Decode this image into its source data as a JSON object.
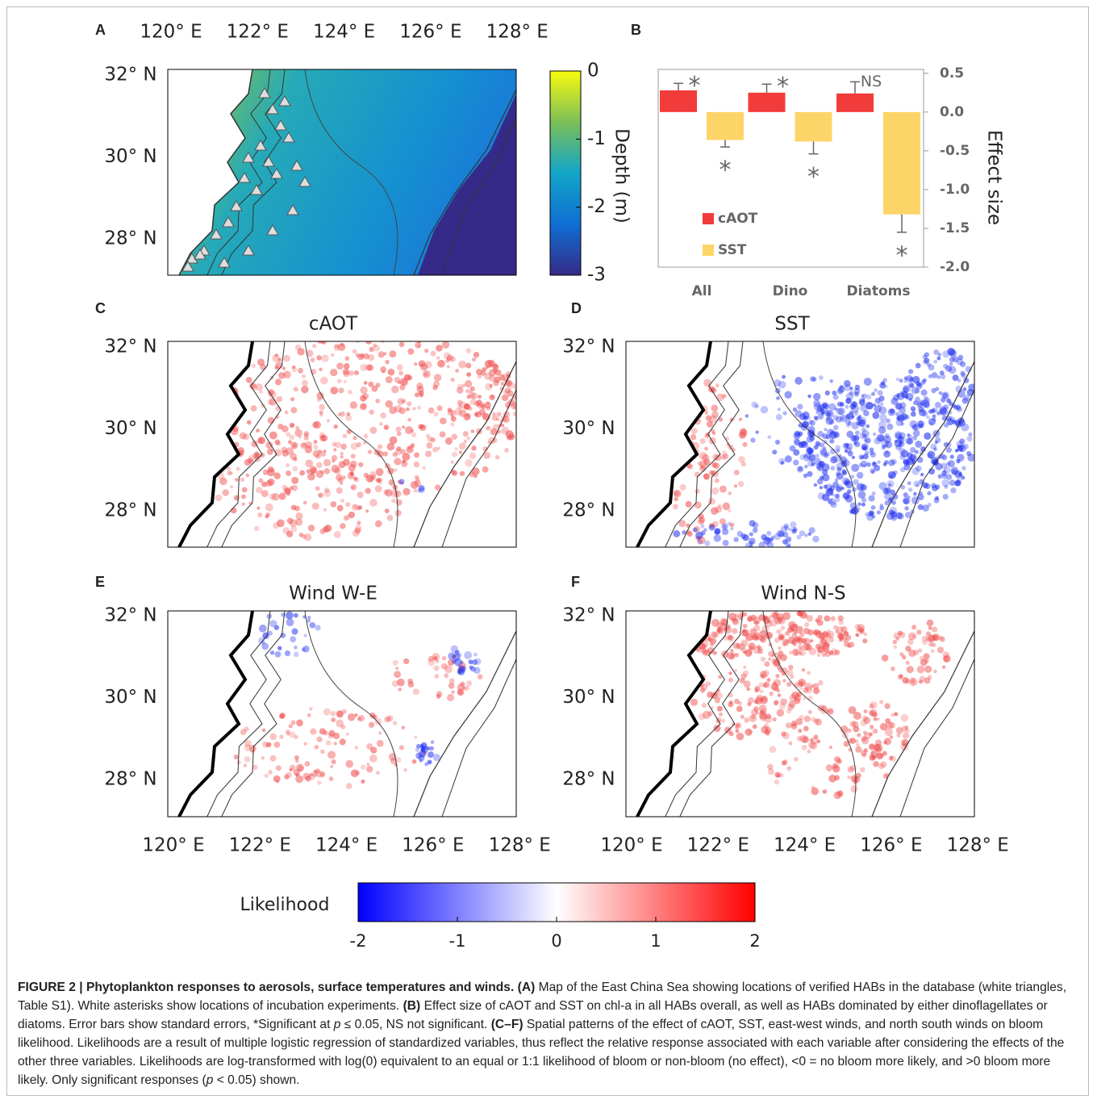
{
  "panel_labels": [
    "A",
    "B",
    "C",
    "D",
    "E",
    "F"
  ],
  "map_axes": {
    "lon_labels": [
      "120° E",
      "122° E",
      "124° E",
      "126° E",
      "128° E"
    ],
    "lat_labels": [
      "32° N",
      "30° N",
      "28° N"
    ]
  },
  "map_titles": [
    "cAOT",
    "SST",
    "Wind W-E",
    "Wind N-S"
  ],
  "depth_colorbar": {
    "label": "Depth (m)",
    "lim": [
      -3,
      0
    ],
    "ticks": [
      0,
      -1,
      -2,
      -3
    ]
  },
  "chart_data": {
    "type": "bar",
    "y_axis_label": "Effect size",
    "categories": [
      "All",
      "Dino",
      "Diatoms"
    ],
    "series": [
      {
        "name": "cAOT",
        "color": "#f23b3b",
        "values": [
          0.28,
          0.25,
          0.24
        ],
        "errors": [
          0.09,
          0.11,
          0.15
        ],
        "sig_labels": [
          "*",
          "*",
          "NS"
        ]
      },
      {
        "name": "SST",
        "color": "#fdd468",
        "values": [
          -0.36,
          -0.38,
          -1.32
        ],
        "errors": [
          0.09,
          0.16,
          0.23
        ],
        "sig_labels": [
          "*",
          "*",
          "*"
        ]
      }
    ],
    "ylim": [
      -2.0,
      0.55
    ],
    "yticks": [
      0.5,
      {
        "value": 0,
        "label": "0.0"
      },
      -0.5,
      {
        "value": -1,
        "label": "-1.0"
      },
      -1.5,
      {
        "value": -2,
        "label": "-2.0"
      }
    ]
  },
  "likelihood_colorbar": {
    "label": "Likelihood",
    "lim": [
      -2,
      2
    ],
    "ticks": [
      -2,
      -1,
      0,
      1,
      2
    ]
  },
  "caption": {
    "runs": [
      "FIGURE 2 | Phytoplankton responses to aerosols, surface temperatures and winds.",
      "(A)",
      " Map of the East China Sea showing locations of verified HABs in the database (white triangles, Table S1). White asterisks show locations of incubation experiments. ",
      "(B)",
      " Effect size of cAOT and SST on chl-a in all HABs overall, as well as HABs dominated by either dinoflagellates or diatoms. Error bars show standard errors, *Significant at ",
      "p",
      " ≤ 0.05, NS not significant. ",
      "(C–F)",
      " Spatial patterns of the effect of cAOT, SST, east-west winds, and north south winds on bloom likelihood. Likelihoods are a result of multiple logistic regression of standardized variables, thus reflect the relative response associated with each variable after considering the effects of the other three variables. Likelihoods are log-transformed with log(0) equivalent to an equal or 1:1 likelihood of bloom or non-bloom (no effect), <0 = no bloom more likely, and >0 bloom more likely. Only significant responses (",
      "p",
      " < 0.05) shown."
    ]
  }
}
